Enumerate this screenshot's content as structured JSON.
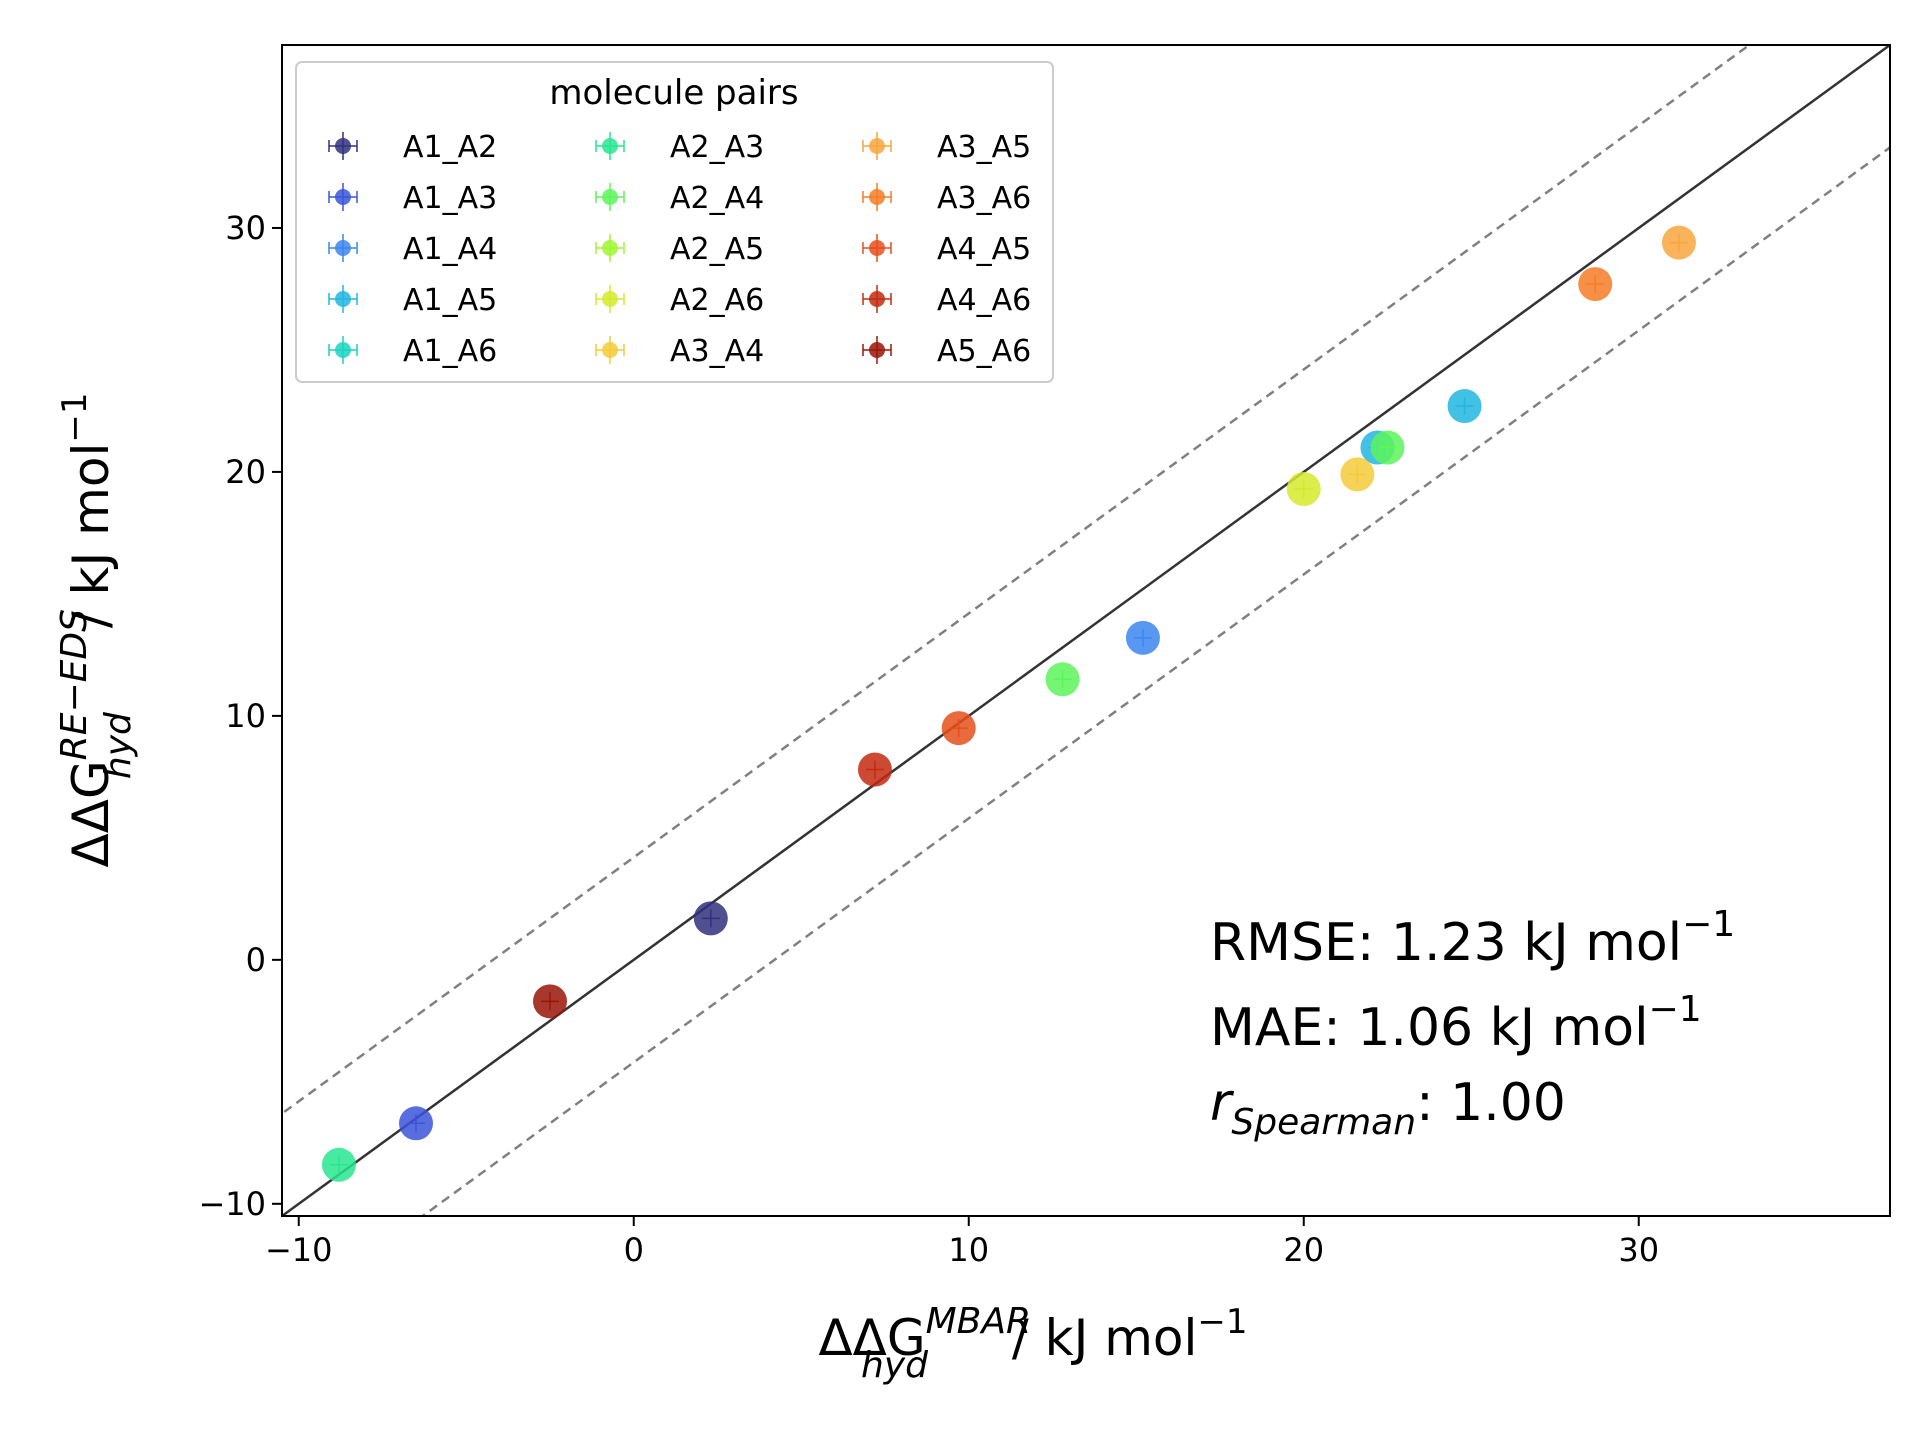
{
  "chart_data": {
    "type": "scatter",
    "xlim": [
      -10.5,
      37.5
    ],
    "ylim": [
      -10.5,
      37.5
    ],
    "xticks": [
      -10,
      0,
      10,
      20,
      30
    ],
    "yticks": [
      -10,
      0,
      10,
      20,
      30
    ],
    "xtick_labels": [
      "−10",
      "0",
      "10",
      "20",
      "30"
    ],
    "ytick_labels": [
      "−10",
      "0",
      "10",
      "20",
      "30"
    ],
    "xlabel": {
      "main": "ΔΔG",
      "sub": "hyd",
      "sup": "MBAR",
      "rest": " / kJ mol",
      "exp": "−1"
    },
    "ylabel": {
      "main": "ΔΔG",
      "sub": "hyd",
      "sup": "RE−EDS",
      "rest": " / kJ mol",
      "exp": "−1"
    },
    "legend": {
      "title": "molecule pairs",
      "position": "top-left",
      "columns": 3
    },
    "reference_lines": [
      {
        "name": "identity",
        "offset": 0,
        "style": "solid",
        "color": "#333333"
      },
      {
        "name": "upper-bound",
        "offset": 4.2,
        "style": "dashed",
        "color": "#808080"
      },
      {
        "name": "lower-bound",
        "offset": -4.2,
        "style": "dashed",
        "color": "#808080"
      }
    ],
    "series": [
      {
        "name": "A1_A2",
        "color": "#30307e",
        "points": [
          {
            "x": 2.3,
            "y": 1.7
          }
        ]
      },
      {
        "name": "A1_A3",
        "color": "#3b55d8",
        "points": [
          {
            "x": -6.5,
            "y": -6.7
          }
        ]
      },
      {
        "name": "A1_A4",
        "color": "#3b86f0",
        "points": [
          {
            "x": 15.2,
            "y": 13.2
          }
        ]
      },
      {
        "name": "A1_A5",
        "color": "#22b6e0",
        "points": [
          {
            "x": 24.8,
            "y": 22.7
          },
          {
            "x": 22.2,
            "y": 21.0
          }
        ]
      },
      {
        "name": "A1_A6",
        "color": "#1ad3c2",
        "points": []
      },
      {
        "name": "A2_A3",
        "color": "#27e68f",
        "points": [
          {
            "x": -8.8,
            "y": -8.4
          }
        ]
      },
      {
        "name": "A2_A4",
        "color": "#5cf55a",
        "points": [
          {
            "x": 12.8,
            "y": 11.5
          },
          {
            "x": 22.5,
            "y": 21.0
          }
        ]
      },
      {
        "name": "A2_A5",
        "color": "#a1f534",
        "points": []
      },
      {
        "name": "A2_A6",
        "color": "#d3ea2b",
        "points": [
          {
            "x": 20.0,
            "y": 19.3
          }
        ]
      },
      {
        "name": "A3_A4",
        "color": "#f5ca3a",
        "points": [
          {
            "x": 21.6,
            "y": 19.9
          }
        ]
      },
      {
        "name": "A3_A5",
        "color": "#f8a63d",
        "points": [
          {
            "x": 31.2,
            "y": 29.4
          }
        ]
      },
      {
        "name": "A3_A6",
        "color": "#f67d27",
        "points": [
          {
            "x": 28.7,
            "y": 27.7
          }
        ]
      },
      {
        "name": "A4_A5",
        "color": "#e4501b",
        "points": [
          {
            "x": 9.7,
            "y": 9.5
          }
        ]
      },
      {
        "name": "A4_A6",
        "color": "#c32a0f",
        "points": [
          {
            "x": 7.2,
            "y": 7.8
          }
        ]
      },
      {
        "name": "A5_A6",
        "color": "#9a1507",
        "points": [
          {
            "x": -2.5,
            "y": -1.7
          }
        ]
      }
    ],
    "annotations": {
      "rmse_label": "RMSE: 1.23 kJ mol",
      "rmse_exp": "−1",
      "mae_label": "MAE: 1.06 kJ mol",
      "mae_exp": "−1",
      "spearman_r": "r",
      "spearman_sub": "Spearman",
      "spearman_value": ": 1.00"
    }
  }
}
